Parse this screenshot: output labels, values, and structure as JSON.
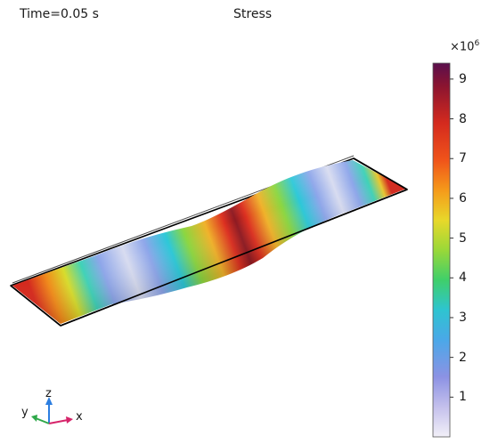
{
  "header": {
    "time_label": "Time=0.05 s",
    "title": "Stress"
  },
  "colorbar": {
    "multiplier_base": "×10",
    "multiplier_exponent": "6",
    "ticks": [
      {
        "label": "1",
        "value": 1
      },
      {
        "label": "2",
        "value": 2
      },
      {
        "label": "3",
        "value": 3
      },
      {
        "label": "4",
        "value": 4
      },
      {
        "label": "5",
        "value": 5
      },
      {
        "label": "6",
        "value": 6
      },
      {
        "label": "7",
        "value": 7
      },
      {
        "label": "8",
        "value": 8
      },
      {
        "label": "9",
        "value": 9
      }
    ],
    "range": [
      0,
      9.4
    ]
  },
  "axes_triad": {
    "x_label": "x",
    "y_label": "y",
    "z_label": "z",
    "x_color": "#d6246a",
    "y_color": "#2fa84a",
    "z_color": "#2c7ee0"
  },
  "colors": {
    "frame_outline": "#000000",
    "colorbar_top": "#5a0f4d",
    "colorbar_bottom": "#f2f0f8"
  }
}
